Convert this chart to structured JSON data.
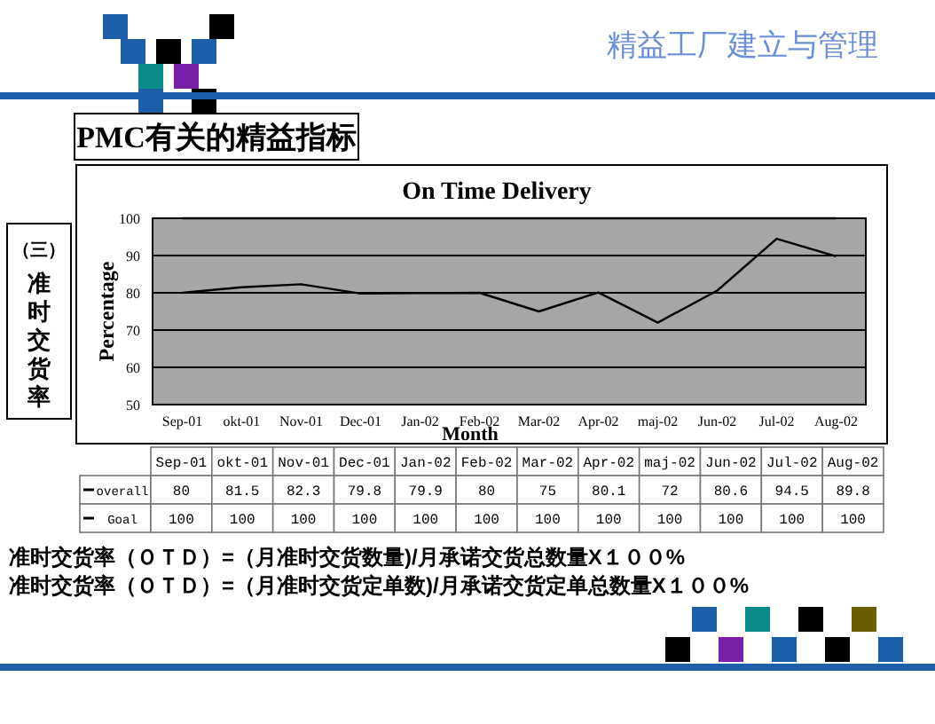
{
  "chart_data": {
    "type": "line",
    "title": "On Time Delivery",
    "xlabel": "Month",
    "ylabel": "Percentage",
    "categories": [
      "Sep-01",
      "okt-01",
      "Nov-01",
      "Dec-01",
      "Jan-02",
      "Feb-02",
      "Mar-02",
      "Apr-02",
      "maj-02",
      "Jun-02",
      "Jul-02",
      "Aug-02"
    ],
    "series": [
      {
        "name": "overall",
        "color": "#000000",
        "values": [
          80,
          81.5,
          82.3,
          79.8,
          79.9,
          80,
          75,
          80.1,
          72,
          80.6,
          94.5,
          89.8
        ]
      },
      {
        "name": "Goal",
        "color": "#000000",
        "values": [
          100,
          100,
          100,
          100,
          100,
          100,
          100,
          100,
          100,
          100,
          100,
          100
        ]
      }
    ],
    "ylim": [
      50,
      100
    ],
    "yticks": [
      50,
      60,
      70,
      80,
      90,
      100
    ],
    "grid": "y",
    "legend": "bottom",
    "data_labels": true,
    "annotations": [
      "精益工厂建立与管理",
      "PMC有关的精益指标",
      "（三）准时交货率",
      "准时交货率（ＯＴＤ）=（月准时交货数量)/月承诺交货总数量X１００%",
      "准时交货率（ＯＴＤ）=（月准时交货定单数)/月承诺交货定单总数量X１００%"
    ]
  }
}
